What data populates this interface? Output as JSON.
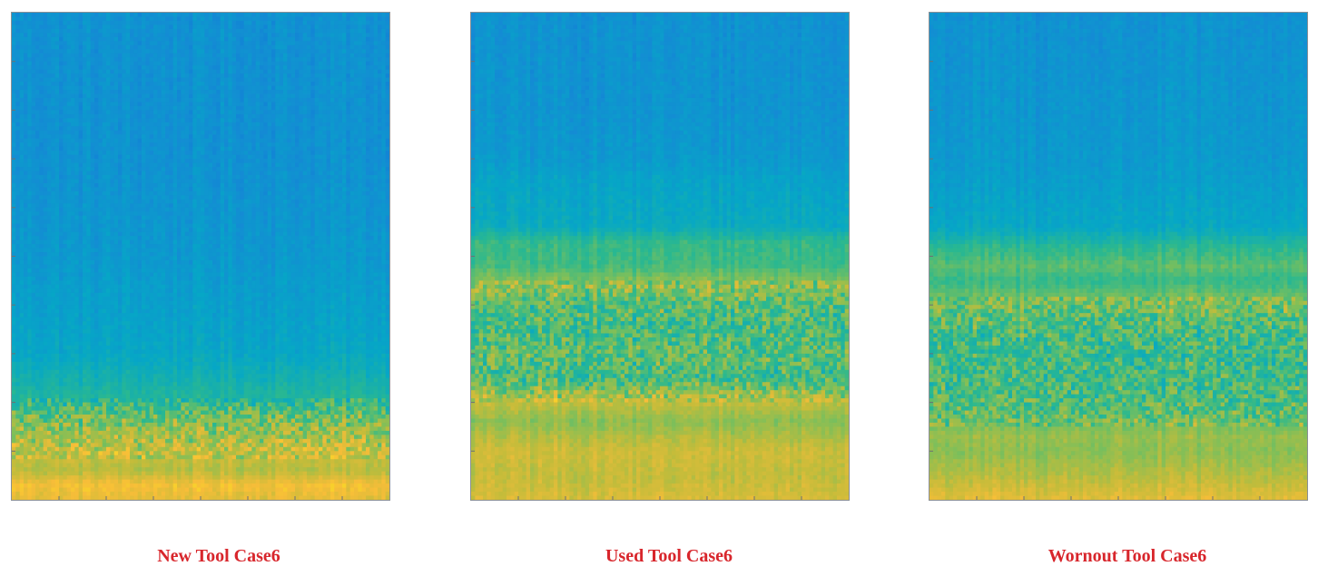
{
  "chart_data": [
    {
      "type": "heatmap",
      "title": "New Tool Case6",
      "colormap": "parula",
      "grid": false,
      "legend": "none",
      "description_bands": "value by normalized frequency (0 = bottom, 1 = top)",
      "bands": [
        {
          "y": 0.0,
          "v": 0.82
        },
        {
          "y": 0.03,
          "v": 0.86
        },
        {
          "y": 0.06,
          "v": 0.74
        },
        {
          "y": 0.1,
          "v": 0.78
        },
        {
          "y": 0.14,
          "v": 0.7
        },
        {
          "y": 0.18,
          "v": 0.62
        },
        {
          "y": 0.21,
          "v": 0.52
        },
        {
          "y": 0.3,
          "v": 0.42
        },
        {
          "y": 0.36,
          "v": 0.4
        },
        {
          "y": 0.5,
          "v": 0.36
        },
        {
          "y": 0.7,
          "v": 0.33
        },
        {
          "y": 1.0,
          "v": 0.33
        }
      ],
      "speckle": [
        0.08,
        0.21
      ]
    },
    {
      "type": "heatmap",
      "title": "Used Tool Case6",
      "colormap": "parula",
      "grid": false,
      "legend": "none",
      "bands": [
        {
          "y": 0.0,
          "v": 0.8
        },
        {
          "y": 0.05,
          "v": 0.76
        },
        {
          "y": 0.1,
          "v": 0.78
        },
        {
          "y": 0.16,
          "v": 0.68
        },
        {
          "y": 0.2,
          "v": 0.76
        },
        {
          "y": 0.25,
          "v": 0.58
        },
        {
          "y": 0.3,
          "v": 0.62
        },
        {
          "y": 0.35,
          "v": 0.58
        },
        {
          "y": 0.4,
          "v": 0.6
        },
        {
          "y": 0.44,
          "v": 0.7
        },
        {
          "y": 0.48,
          "v": 0.58
        },
        {
          "y": 0.53,
          "v": 0.56
        },
        {
          "y": 0.56,
          "v": 0.44
        },
        {
          "y": 0.66,
          "v": 0.4
        },
        {
          "y": 0.7,
          "v": 0.36
        },
        {
          "y": 0.8,
          "v": 0.34
        },
        {
          "y": 1.0,
          "v": 0.33
        }
      ],
      "speckle": [
        0.2,
        0.45
      ]
    },
    {
      "type": "heatmap",
      "title": "Wornout Tool Case6",
      "colormap": "parula",
      "grid": false,
      "legend": "none",
      "bands": [
        {
          "y": 0.0,
          "v": 0.82
        },
        {
          "y": 0.05,
          "v": 0.74
        },
        {
          "y": 0.1,
          "v": 0.68
        },
        {
          "y": 0.13,
          "v": 0.7
        },
        {
          "y": 0.17,
          "v": 0.62
        },
        {
          "y": 0.24,
          "v": 0.58
        },
        {
          "y": 0.3,
          "v": 0.56
        },
        {
          "y": 0.36,
          "v": 0.6
        },
        {
          "y": 0.41,
          "v": 0.66
        },
        {
          "y": 0.45,
          "v": 0.56
        },
        {
          "y": 0.48,
          "v": 0.62
        },
        {
          "y": 0.52,
          "v": 0.54
        },
        {
          "y": 0.56,
          "v": 0.42
        },
        {
          "y": 0.7,
          "v": 0.36
        },
        {
          "y": 1.0,
          "v": 0.33
        }
      ],
      "speckle": [
        0.15,
        0.42
      ]
    }
  ]
}
